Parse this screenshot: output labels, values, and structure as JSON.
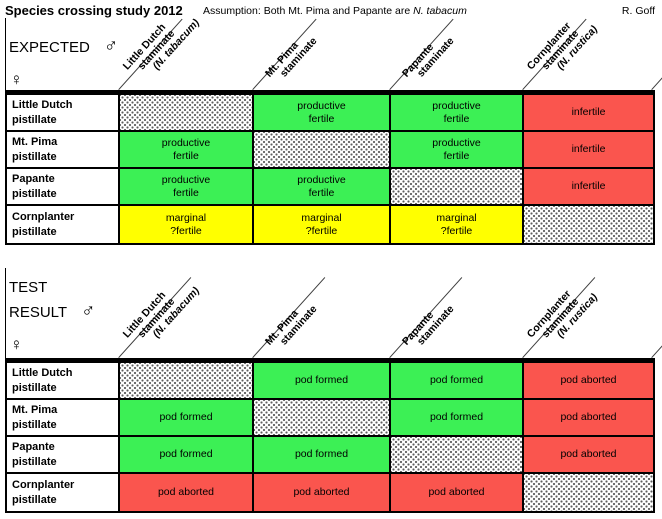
{
  "page": {
    "title": "Species crossing study 2012",
    "assumption": {
      "prefix": "Assumption: Both Mt. Pima and Papante are ",
      "species": "N. tabacum"
    },
    "author": "R. Goff",
    "male_symbol": "♂",
    "female_symbol": "♀"
  },
  "colors": {
    "green": "#3CF055",
    "red": "#FA554E",
    "yellow": "#FFFF00"
  },
  "tables": [
    {
      "corner_label": "EXPECTED",
      "columns": [
        {
          "name": "Little Dutch",
          "role": "staminate",
          "species": "(N. tabacum)"
        },
        {
          "name": "Mt. Pima",
          "role": "staminate",
          "species": ""
        },
        {
          "name": "Papante",
          "role": "staminate",
          "species": ""
        },
        {
          "name": "Cornplanter",
          "role": "staminate",
          "species": "(N. rustica)"
        }
      ],
      "rows": [
        {
          "name": "Little Dutch",
          "role": "pistillate",
          "cells": [
            {
              "color": "dotted",
              "text": ""
            },
            {
              "color": "green",
              "text": "productive\nfertile"
            },
            {
              "color": "green",
              "text": "productive\nfertile"
            },
            {
              "color": "red",
              "text": "infertile"
            }
          ]
        },
        {
          "name": "Mt. Pima",
          "role": "pistillate",
          "cells": [
            {
              "color": "green",
              "text": "productive\nfertile"
            },
            {
              "color": "dotted",
              "text": ""
            },
            {
              "color": "green",
              "text": "productive\nfertile"
            },
            {
              "color": "red",
              "text": "infertile"
            }
          ]
        },
        {
          "name": "Papante",
          "role": "pistillate",
          "cells": [
            {
              "color": "green",
              "text": "productive\nfertile"
            },
            {
              "color": "green",
              "text": "productive\nfertile"
            },
            {
              "color": "dotted",
              "text": ""
            },
            {
              "color": "red",
              "text": "infertile"
            }
          ]
        },
        {
          "name": "Cornplanter",
          "role": "pistillate",
          "cells": [
            {
              "color": "yellow",
              "text": "marginal\n?fertile"
            },
            {
              "color": "yellow",
              "text": "marginal\n?fertile"
            },
            {
              "color": "yellow",
              "text": "marginal\n?fertile"
            },
            {
              "color": "dotted",
              "text": ""
            }
          ]
        }
      ]
    },
    {
      "corner_label": "TEST\nRESULT",
      "columns": [
        {
          "name": "Little Dutch",
          "role": "staminate",
          "species": "(N. tabacum)"
        },
        {
          "name": "Mt. Pima",
          "role": "staminate",
          "species": ""
        },
        {
          "name": "Papante",
          "role": "staminate",
          "species": ""
        },
        {
          "name": "Cornplanter",
          "role": "staminate",
          "species": "(N. rustica)"
        }
      ],
      "rows": [
        {
          "name": "Little Dutch",
          "role": "pistillate",
          "cells": [
            {
              "color": "dotted",
              "text": ""
            },
            {
              "color": "green",
              "text": "pod formed"
            },
            {
              "color": "green",
              "text": "pod formed"
            },
            {
              "color": "red",
              "text": "pod aborted"
            }
          ]
        },
        {
          "name": "Mt. Pima",
          "role": "pistillate",
          "cells": [
            {
              "color": "green",
              "text": "pod formed"
            },
            {
              "color": "dotted",
              "text": ""
            },
            {
              "color": "green",
              "text": "pod formed"
            },
            {
              "color": "red",
              "text": "pod aborted"
            }
          ]
        },
        {
          "name": "Papante",
          "role": "pistillate",
          "cells": [
            {
              "color": "green",
              "text": "pod formed"
            },
            {
              "color": "green",
              "text": "pod formed"
            },
            {
              "color": "dotted",
              "text": ""
            },
            {
              "color": "red",
              "text": "pod aborted"
            }
          ]
        },
        {
          "name": "Cornplanter",
          "role": "pistillate",
          "cells": [
            {
              "color": "red",
              "text": "pod aborted"
            },
            {
              "color": "red",
              "text": "pod aborted"
            },
            {
              "color": "red",
              "text": "pod aborted"
            },
            {
              "color": "dotted",
              "text": ""
            }
          ]
        }
      ]
    }
  ]
}
